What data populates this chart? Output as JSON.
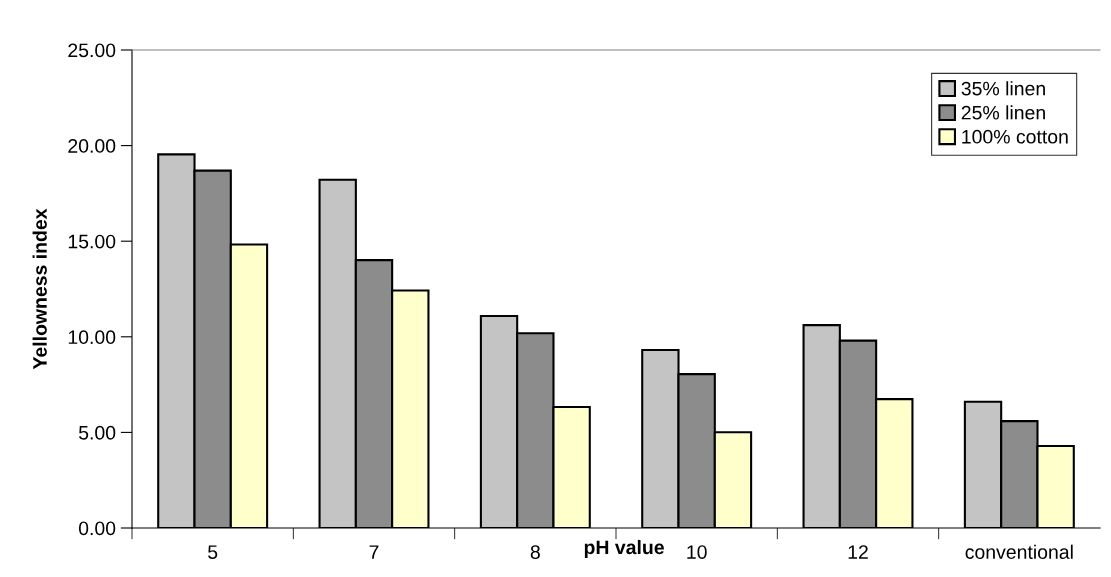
{
  "chart_data": {
    "type": "bar",
    "xlabel": "pH value",
    "ylabel": "Yellowness index",
    "categories": [
      "5",
      "7",
      "8",
      "10",
      "12",
      "conventional"
    ],
    "series": [
      {
        "name": "35% linen",
        "color": "#c4c4c4",
        "values": [
          19.54,
          18.21,
          11.09,
          9.31,
          10.61,
          6.6
        ]
      },
      {
        "name": "25% linen",
        "color": "#8c8c8c",
        "values": [
          18.69,
          14.01,
          10.19,
          8.05,
          9.8,
          5.59
        ]
      },
      {
        "name": "100% cotton",
        "color": "#ffffcc",
        "values": [
          14.83,
          12.42,
          6.33,
          5.01,
          6.74,
          4.29
        ]
      }
    ],
    "ylim": [
      0,
      25
    ],
    "yticks": [
      {
        "value": 0,
        "label": "0.00"
      },
      {
        "value": 5,
        "label": "5.00"
      },
      {
        "value": 10,
        "label": "10.00"
      },
      {
        "value": 15,
        "label": "15.00"
      },
      {
        "value": 20,
        "label": "20.00"
      },
      {
        "value": 25,
        "label": "25.00"
      }
    ],
    "grid": false,
    "legend": "top right"
  }
}
